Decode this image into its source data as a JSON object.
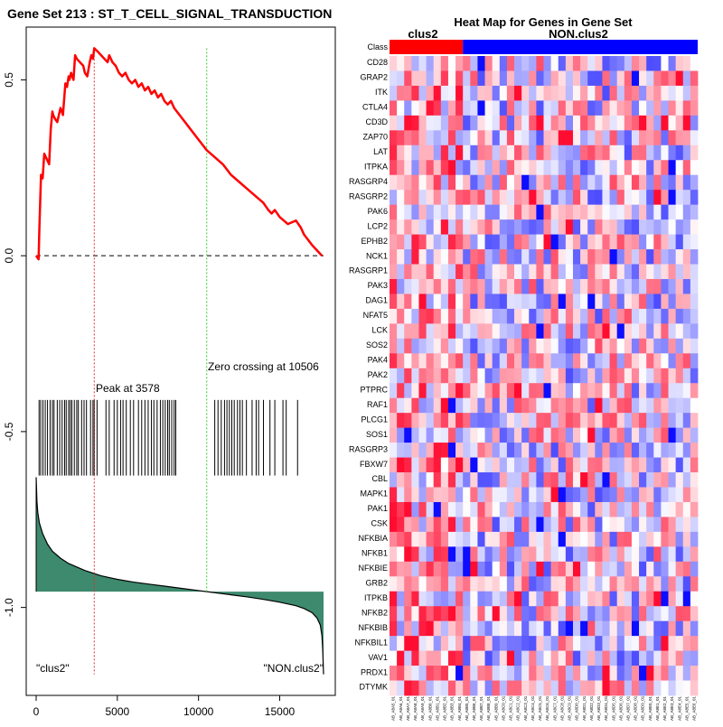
{
  "left_title": "Gene Set  213 : ST_T_CELL_SIGNAL_TRANSDUCTION",
  "peak_label": "Peak at 3578",
  "zero_label": "Zero crossing at 10506",
  "left_group_label": "\"clus2\"",
  "right_group_label": "\"NON.clus2\"",
  "heatmap_title": "Heat Map for Genes in Gene Set",
  "class_label": "Class",
  "class_names": [
    "clus2",
    "NON.clus2"
  ],
  "colors": {
    "enrichment": "#ff0000",
    "peak_line": "#dd3333",
    "zero_line": "#33cc33",
    "metric_fill": "#3d8a6e",
    "pos": "#ff0000",
    "neg": "#0000ff"
  },
  "chart_data": [
    {
      "type": "line",
      "title": "Gene Set  213 : ST_T_CELL_SIGNAL_TRANSDUCTION",
      "xlim": [
        0,
        17700
      ],
      "ylim": [
        -1.25,
        0.65
      ],
      "x_ticks": [
        0,
        5000,
        10000,
        15000
      ],
      "y_ticks": [
        0.5,
        0.0,
        -0.5,
        -1.0
      ],
      "y_tick_labels": [
        "0.5",
        "0.0",
        "-0.5",
        "-1.0"
      ],
      "peak_x": 3578,
      "zero_crossing_x": 10506,
      "es_curve": {
        "x": [
          0,
          150,
          200,
          300,
          400,
          500,
          600,
          700,
          800,
          900,
          1000,
          1050,
          1150,
          1300,
          1500,
          1650,
          1800,
          1900,
          2000,
          2050,
          2150,
          2300,
          2400,
          2500,
          2700,
          2900,
          3000,
          3150,
          3300,
          3400,
          3500,
          3578,
          3800,
          4000,
          4200,
          4400,
          4500,
          4700,
          4900,
          5100,
          5300,
          5500,
          5700,
          5900,
          6100,
          6300,
          6500,
          6700,
          6900,
          7100,
          7300,
          7500,
          7700,
          7900,
          8100,
          8300,
          8500,
          9000,
          9500,
          10000,
          10506,
          11000,
          11500,
          12000,
          12500,
          13000,
          13500,
          14000,
          14300,
          14500,
          14700,
          15000,
          15500,
          16000,
          16300,
          16500,
          17000,
          17600
        ],
        "y": [
          0.0,
          -0.01,
          0.08,
          0.23,
          0.22,
          0.29,
          0.28,
          0.27,
          0.26,
          0.36,
          0.41,
          0.4,
          0.39,
          0.38,
          0.42,
          0.4,
          0.49,
          0.48,
          0.51,
          0.5,
          0.52,
          0.5,
          0.57,
          0.56,
          0.55,
          0.54,
          0.52,
          0.51,
          0.55,
          0.57,
          0.56,
          0.59,
          0.58,
          0.57,
          0.56,
          0.55,
          0.57,
          0.55,
          0.54,
          0.52,
          0.51,
          0.52,
          0.5,
          0.49,
          0.5,
          0.48,
          0.49,
          0.47,
          0.48,
          0.46,
          0.47,
          0.45,
          0.46,
          0.44,
          0.43,
          0.44,
          0.42,
          0.39,
          0.36,
          0.33,
          0.3,
          0.28,
          0.26,
          0.23,
          0.21,
          0.19,
          0.17,
          0.15,
          0.13,
          0.12,
          0.13,
          0.11,
          0.09,
          0.1,
          0.08,
          0.06,
          0.03,
          0.0
        ]
      },
      "hit_positions": [
        180,
        280,
        420,
        560,
        700,
        860,
        1000,
        1100,
        1300,
        1450,
        1600,
        1750,
        1850,
        2000,
        2100,
        2200,
        2350,
        2500,
        2600,
        2800,
        2950,
        3100,
        3350,
        3500,
        3578,
        3750,
        4300,
        4500,
        4800,
        5000,
        5200,
        5350,
        5550,
        5800,
        6000,
        6300,
        6500,
        6700,
        6900,
        7100,
        7250,
        7450,
        7650,
        7800,
        7950,
        8100,
        8200,
        8350,
        8500,
        8600,
        11000,
        11200,
        11400,
        11600,
        11750,
        11900,
        12050,
        12200,
        12400,
        12550,
        12700,
        12950,
        13300,
        13550,
        13700,
        14000,
        14400,
        14700,
        15200,
        15400,
        16100
      ],
      "metric_curve": {
        "x": [
          0,
          50,
          100,
          200,
          400,
          700,
          1000,
          1500,
          2000,
          3000,
          4000,
          5000,
          6000,
          7000,
          8000,
          9000,
          10000,
          10506,
          11000,
          12000,
          13000,
          14000,
          15000,
          16000,
          16500,
          17000,
          17300,
          17500,
          17600,
          17650,
          17700
        ],
        "y": [
          -0.63,
          -0.7,
          -0.73,
          -0.76,
          -0.79,
          -0.82,
          -0.84,
          -0.86,
          -0.875,
          -0.895,
          -0.91,
          -0.92,
          -0.928,
          -0.934,
          -0.94,
          -0.946,
          -0.952,
          -0.955,
          -0.958,
          -0.964,
          -0.97,
          -0.977,
          -0.985,
          -0.995,
          -1.003,
          -1.015,
          -1.03,
          -1.05,
          -1.08,
          -1.12,
          -1.19
        ]
      },
      "metric_baseline": -0.955
    },
    {
      "type": "heatmap",
      "title": "Heat Map for Genes in Gene Set",
      "rows": [
        "CD28",
        "GRAP2",
        "ITK",
        "CTLA4",
        "CD3D",
        "ZAP70",
        "LAT",
        "ITPKA",
        "RASGRP4",
        "RASGRP2",
        "PAK6",
        "LCP2",
        "EPHB2",
        "NCK1",
        "RASGRP1",
        "PAK3",
        "DAG1",
        "NFAT5",
        "LCK",
        "SOS2",
        "PAK4",
        "PAK2",
        "PTPRC",
        "RAF1",
        "PLCG1",
        "SOS1",
        "RASGRP3",
        "FBXW7",
        "CBL",
        "MAPK1",
        "PAK1",
        "CSK",
        "NFKBIA",
        "NFKB1",
        "NFKBIE",
        "GRB2",
        "ITPKB",
        "NFKB2",
        "NFKBIB",
        "NFKBIL1",
        "VAV1",
        "PRDX1",
        "DTYMK"
      ],
      "n_columns": 42,
      "n_clus2_columns": 10,
      "column_labels": [
        "AB_A8A5_01",
        "AB_A8A6_01",
        "AB_A8A7_01",
        "AB_A8A8_01",
        "AB_A8A9_01",
        "AB_A8B0_01",
        "AB_A8B1_01",
        "AB_A8B2_01",
        "AB_A8B3_01",
        "AB_A8B4_01",
        "AB_A8B5_01",
        "AB_A8B6_01",
        "AB_A8B7_01",
        "AB_A8B8_01",
        "AB_A8B9_01",
        "AB_A8C0_01",
        "AB_A8C1_01",
        "AB_A8C2_01",
        "AB_A8C3_01",
        "AB_A8C4_01",
        "AB_A8C5_01",
        "AB_A8C6_01",
        "AB_A8C7_01",
        "AB_A8C8_01",
        "AB_A8C9_01",
        "AB_A8D0_01",
        "AB_A8D1_01",
        "AB_A8D2_01",
        "AB_A8D3_01",
        "AB_A8D4_01",
        "AB_A8D5_01",
        "AB_A8D6_01",
        "AB_A8D7_01",
        "AB_A8D8_01",
        "AB_A8D9_01",
        "AB_A8E0_01",
        "AB_A8E1_01",
        "AB_A8E2_01",
        "AB_A8E3_01",
        "AB_A8E4_01",
        "AB_A8E5_01",
        "AB_A8E6_01"
      ],
      "color_seed": 213
    }
  ]
}
